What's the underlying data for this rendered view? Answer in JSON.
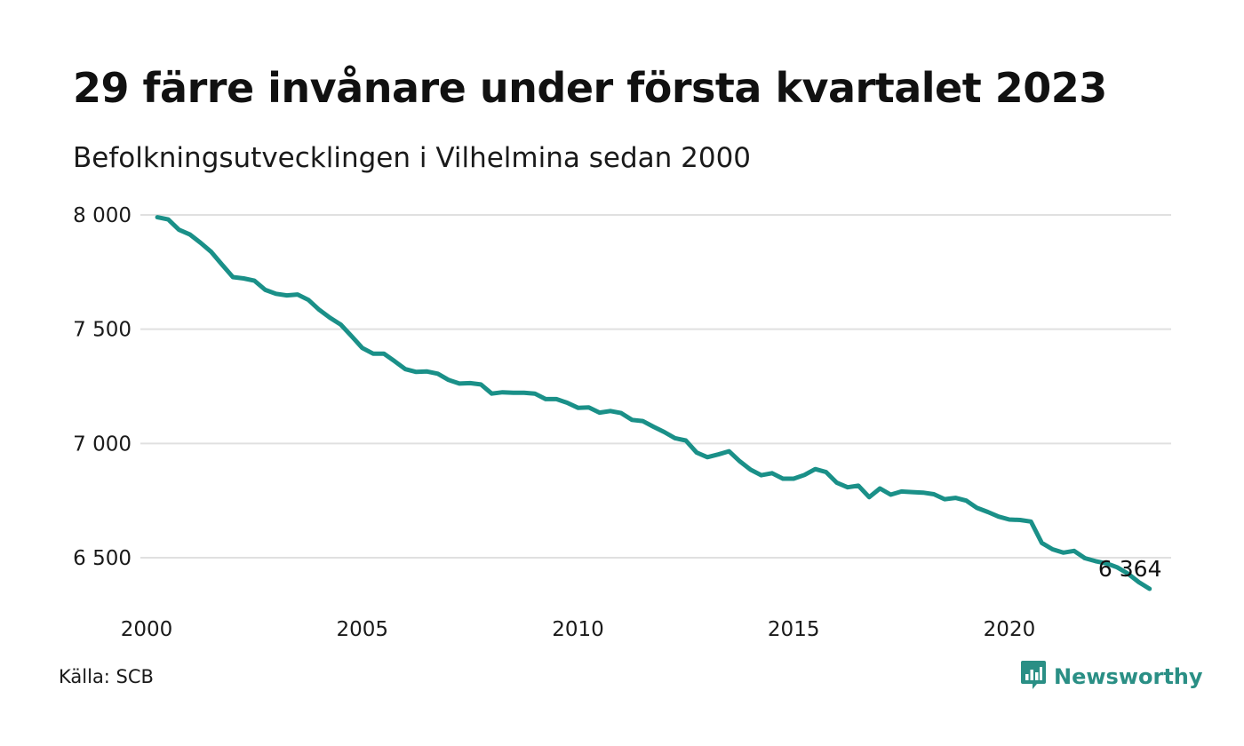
{
  "header": {
    "title": "29 färre invånare under första kvartalet 2023",
    "subtitle": "Befolkningsutvecklingen i Vilhelmina sedan 2000"
  },
  "footer": {
    "source": "Källa: SCB",
    "brand": "Newsworthy",
    "brand_icon": "chart-bubble-icon"
  },
  "colors": {
    "line": "#1a9088",
    "grid": "#e0e0e0",
    "brand": "#2a8f85"
  },
  "chart_data": {
    "type": "line",
    "title": "29 färre invånare under första kvartalet 2023",
    "subtitle": "Befolkningsutvecklingen i Vilhelmina sedan 2000",
    "xlabel": "",
    "ylabel": "",
    "xlim": [
      2000,
      2023.75
    ],
    "ylim": [
      6350,
      8050
    ],
    "y_ticks": [
      {
        "value": 6500,
        "label": "6 500"
      },
      {
        "value": 7000,
        "label": "7 000"
      },
      {
        "value": 7500,
        "label": "7 500"
      },
      {
        "value": 8000,
        "label": "8 000"
      }
    ],
    "x_ticks": [
      {
        "value": 2000,
        "label": "2000"
      },
      {
        "value": 2005,
        "label": "2005"
      },
      {
        "value": 2010,
        "label": "2010"
      },
      {
        "value": 2015,
        "label": "2015"
      },
      {
        "value": 2020,
        "label": "2020"
      }
    ],
    "grid": "horizontal",
    "end_label": "6 364",
    "series": [
      {
        "x": [
          2000.25,
          2000.5,
          2000.75,
          2001.0,
          2001.25,
          2001.5,
          2001.75,
          2002.0,
          2002.25,
          2002.5,
          2002.75,
          2003.0,
          2003.25,
          2003.5,
          2003.75,
          2004.0,
          2004.25,
          2004.5,
          2004.75,
          2005.0,
          2005.25,
          2005.5,
          2005.75,
          2006.0,
          2006.25,
          2006.5,
          2006.75,
          2007.0,
          2007.25,
          2007.5,
          2007.75,
          2008.0,
          2008.25,
          2008.5,
          2008.75,
          2009.0,
          2009.25,
          2009.5,
          2009.75,
          2010.0,
          2010.25,
          2010.5,
          2010.75,
          2011.0,
          2011.25,
          2011.5,
          2011.75,
          2012.0,
          2012.25,
          2012.5,
          2012.75,
          2013.0,
          2013.25,
          2013.5,
          2013.75,
          2014.0,
          2014.25,
          2014.5,
          2014.75,
          2015.0,
          2015.25,
          2015.5,
          2015.75,
          2016.0,
          2016.25,
          2016.5,
          2016.75,
          2017.0,
          2017.25,
          2017.5,
          2017.75,
          2018.0,
          2018.25,
          2018.5,
          2018.75,
          2019.0,
          2019.25,
          2019.5,
          2019.75,
          2020.0,
          2020.25,
          2020.5,
          2020.75,
          2021.0,
          2021.25,
          2021.5,
          2021.75,
          2022.0,
          2022.25,
          2022.5,
          2022.75,
          2023.0,
          2023.25
        ],
        "values": [
          7990,
          7980,
          7935,
          7915,
          7878,
          7838,
          7782,
          7728,
          7722,
          7712,
          7672,
          7655,
          7648,
          7652,
          7628,
          7585,
          7550,
          7520,
          7470,
          7418,
          7393,
          7393,
          7360,
          7325,
          7313,
          7315,
          7305,
          7278,
          7262,
          7264,
          7258,
          7218,
          7224,
          7222,
          7222,
          7218,
          7194,
          7194,
          7178,
          7156,
          7158,
          7135,
          7142,
          7133,
          7103,
          7098,
          7073,
          7050,
          7023,
          7013,
          6960,
          6940,
          6952,
          6966,
          6922,
          6885,
          6861,
          6870,
          6846,
          6846,
          6862,
          6888,
          6875,
          6828,
          6808,
          6815,
          6765,
          6803,
          6776,
          6790,
          6787,
          6785,
          6778,
          6756,
          6762,
          6750,
          6718,
          6700,
          6680,
          6667,
          6665,
          6658,
          6565,
          6537,
          6522,
          6530,
          6498,
          6485,
          6475,
          6458,
          6430,
          6393,
          6364
        ]
      }
    ]
  }
}
